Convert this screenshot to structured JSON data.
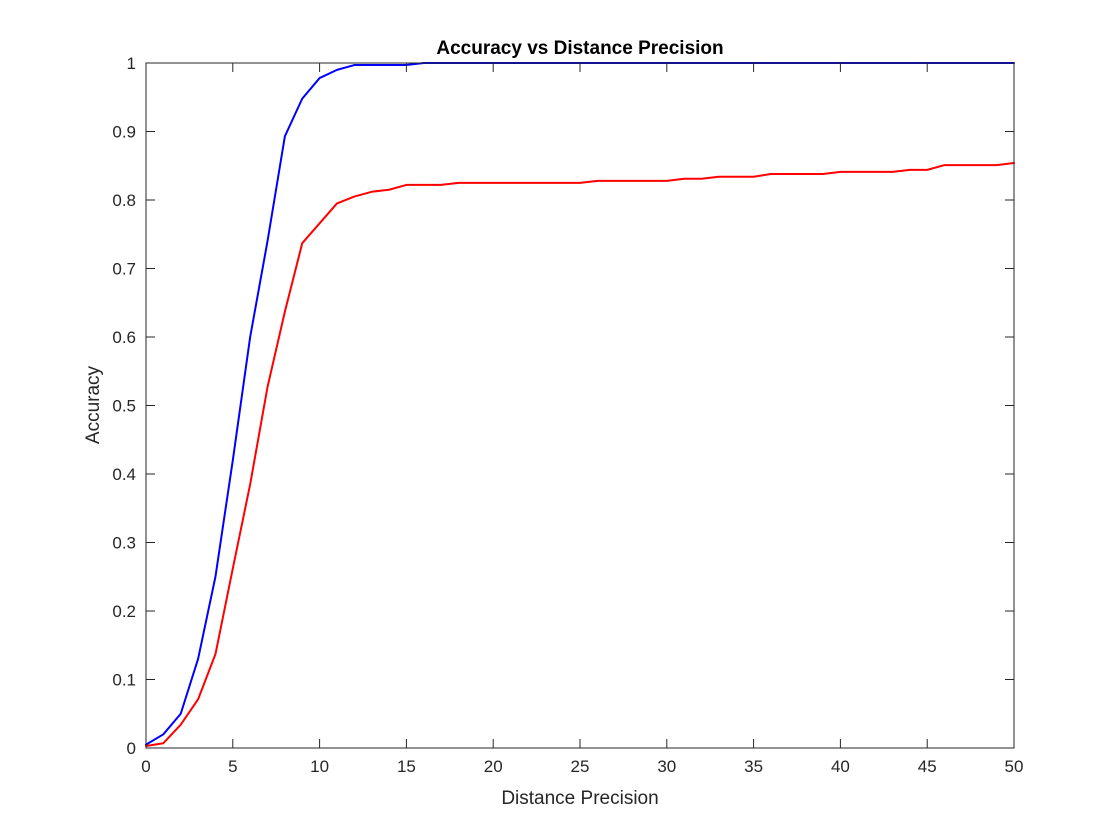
{
  "chart_data": {
    "type": "line",
    "title": "Accuracy vs Distance Precision",
    "xlabel": "Distance Precision",
    "ylabel": "Accuracy",
    "xlim": [
      0,
      50
    ],
    "ylim": [
      0,
      1
    ],
    "xticks": [
      0,
      5,
      10,
      15,
      20,
      25,
      30,
      35,
      40,
      45,
      50
    ],
    "yticks": [
      0,
      0.1,
      0.2,
      0.3,
      0.4,
      0.5,
      0.6,
      0.7,
      0.8,
      0.9,
      1
    ],
    "xtick_labels": [
      "0",
      "5",
      "10",
      "15",
      "20",
      "25",
      "30",
      "35",
      "40",
      "45",
      "50"
    ],
    "ytick_labels": [
      "0",
      "0.1",
      "0.2",
      "0.3",
      "0.4",
      "0.5",
      "0.6",
      "0.7",
      "0.8",
      "0.9",
      "1"
    ],
    "grid": false,
    "box": true,
    "x": [
      0,
      1,
      2,
      3,
      4,
      5,
      6,
      7,
      8,
      9,
      10,
      11,
      12,
      13,
      14,
      15,
      16,
      17,
      18,
      19,
      20,
      21,
      22,
      23,
      24,
      25,
      26,
      27,
      28,
      29,
      30,
      31,
      32,
      33,
      34,
      35,
      36,
      37,
      38,
      39,
      40,
      41,
      42,
      43,
      44,
      45,
      46,
      47,
      48,
      49,
      50
    ],
    "series": [
      {
        "color": "#0000ff",
        "values": [
          0.005,
          0.02,
          0.05,
          0.13,
          0.25,
          0.42,
          0.6,
          0.74,
          0.893,
          0.948,
          0.978,
          0.99,
          0.997,
          0.997,
          0.997,
          0.997,
          1,
          1,
          1,
          1,
          1,
          1,
          1,
          1,
          1,
          1,
          1,
          1,
          1,
          1,
          1,
          1,
          1,
          1,
          1,
          1,
          1,
          1,
          1,
          1,
          1,
          1,
          1,
          1,
          1,
          1,
          1,
          1,
          1,
          1,
          1
        ]
      },
      {
        "color": "#ff0000",
        "values": [
          0.003,
          0.007,
          0.034,
          0.071,
          0.137,
          0.262,
          0.385,
          0.527,
          0.637,
          0.737,
          0.766,
          0.795,
          0.805,
          0.812,
          0.815,
          0.822,
          0.822,
          0.822,
          0.825,
          0.825,
          0.825,
          0.825,
          0.825,
          0.825,
          0.825,
          0.825,
          0.828,
          0.828,
          0.828,
          0.828,
          0.828,
          0.831,
          0.831,
          0.834,
          0.834,
          0.834,
          0.838,
          0.838,
          0.838,
          0.838,
          0.841,
          0.841,
          0.841,
          0.841,
          0.844,
          0.844,
          0.851,
          0.851,
          0.851,
          0.851,
          0.854
        ]
      }
    ]
  }
}
